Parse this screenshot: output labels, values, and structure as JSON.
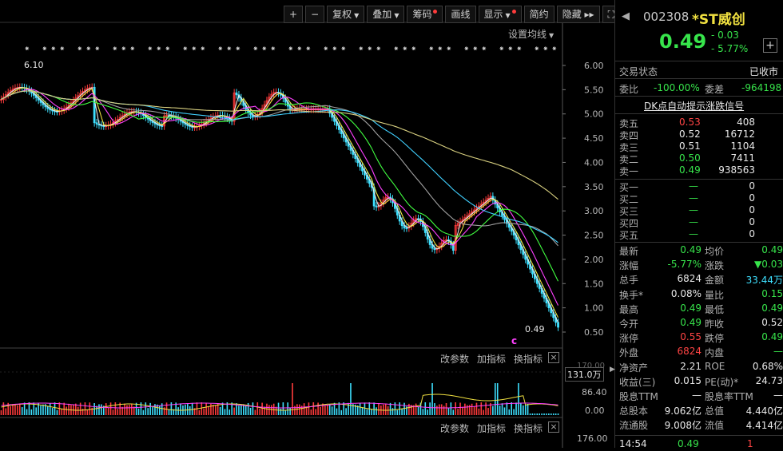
{
  "toolbar": {
    "zoom_in": "+",
    "zoom_out": "−",
    "fuquan": "复权",
    "diejia": "叠加",
    "chouma": "筹码",
    "huaxian": "画线",
    "xianshi": "显示",
    "jianyue": "简约",
    "yincang": "隐藏",
    "yincang_arrows": "▸▸",
    "fullscreen": "⛶"
  },
  "chart": {
    "settings_label": "设置均线",
    "high_marker": "6.10",
    "low_marker": "0.49",
    "price_ticks": [
      "6.00",
      "5.50",
      "5.00",
      "4.50",
      "4.00",
      "3.50",
      "3.00",
      "2.50",
      "2.00",
      "1.50",
      "1.00",
      "0.50"
    ],
    "indicator_tabs_1": [
      "改参数",
      "加指标",
      "换指标"
    ],
    "indicator_tabs_2": [
      "改参数",
      "加指标",
      "换指标"
    ],
    "volume_unit": "131.0万",
    "volume_ticks": [
      "86.40",
      "0.00"
    ],
    "volume_top_tick": "170.00",
    "lower_tick": "176.00",
    "c_marker": "c",
    "colors": {
      "ma_white": "#e8e8e8",
      "ma_yellow": "#f0e040",
      "ma_magenta": "#ff40ff",
      "ma_green": "#40ff40",
      "ma_grey": "#a0a0a0",
      "ma_cyan": "#40d0ff",
      "ma_khaki": "#d8d080",
      "candle_up": "#ff3b3b",
      "candle_down": "#3ee0ff"
    }
  },
  "panel": {
    "code": "002308",
    "name": "*ST威创",
    "price": "0.49",
    "change": "- 0.03",
    "change_pct": "- 5.77%",
    "add_btn": "+",
    "trade_status_label": "交易状态",
    "trade_status_value": "已收市",
    "weibi_label": "委比",
    "weibi_value": "-100.00%",
    "weicha_label": "委差",
    "weicha_value": "-964198",
    "dk_link": "DK点自动提示涨跌信号",
    "asks": [
      {
        "label": "卖五",
        "price": "0.53",
        "vol": "408"
      },
      {
        "label": "卖四",
        "price": "0.52",
        "vol": "16712"
      },
      {
        "label": "卖三",
        "price": "0.51",
        "vol": "1104"
      },
      {
        "label": "卖二",
        "price": "0.50",
        "vol": "7411"
      },
      {
        "label": "卖一",
        "price": "0.49",
        "vol": "938563"
      }
    ],
    "bids": [
      {
        "label": "买一",
        "price": "—",
        "vol": "0"
      },
      {
        "label": "买二",
        "price": "—",
        "vol": "0"
      },
      {
        "label": "买三",
        "price": "—",
        "vol": "0"
      },
      {
        "label": "买四",
        "price": "—",
        "vol": "0"
      },
      {
        "label": "买五",
        "price": "—",
        "vol": "0"
      }
    ],
    "stats": [
      {
        "l1": "最新",
        "v1": "0.49",
        "c1": "green",
        "l2": "均价",
        "v2": "0.49",
        "c2": "green"
      },
      {
        "l1": "涨幅",
        "v1": "-5.77%",
        "c1": "green",
        "l2": "涨跌",
        "v2": "▼0.03",
        "c2": "green"
      },
      {
        "l1": "总手",
        "v1": "6824",
        "c1": "white",
        "l2": "金额",
        "v2": "33.44万",
        "c2": "cyan"
      },
      {
        "l1": "换手*",
        "v1": "0.08%",
        "c1": "white",
        "l2": "量比",
        "v2": "0.15",
        "c2": "green"
      },
      {
        "l1": "最高",
        "v1": "0.49",
        "c1": "green",
        "l2": "最低",
        "v2": "0.49",
        "c2": "green"
      },
      {
        "l1": "今开",
        "v1": "0.49",
        "c1": "green",
        "l2": "昨收",
        "v2": "0.52",
        "c2": "white"
      },
      {
        "l1": "涨停",
        "v1": "0.55",
        "c1": "red",
        "l2": "跌停",
        "v2": "0.49",
        "c2": "green"
      },
      {
        "l1": "外盘",
        "v1": "6824",
        "c1": "red",
        "l2": "内盘",
        "v2": "—",
        "c2": "green"
      },
      {
        "l1": "净资产",
        "v1": "2.21",
        "c1": "white",
        "l2": "ROE",
        "v2": "0.68%",
        "c2": "white"
      },
      {
        "l1": "收益(三)",
        "v1": "0.015",
        "c1": "white",
        "l2": "PE(动)*",
        "v2": "24.73",
        "c2": "white"
      },
      {
        "l1": "股息TTM",
        "v1": "—",
        "c1": "white",
        "l2": "股息率TTM",
        "v2": "—",
        "c2": "white"
      },
      {
        "l1": "总股本",
        "v1": "9.062亿",
        "c1": "white",
        "l2": "总值",
        "v2": "4.440亿",
        "c2": "white"
      },
      {
        "l1": "流通股",
        "v1": "9.008亿",
        "c1": "white",
        "l2": "流值",
        "v2": "4.414亿",
        "c2": "white"
      }
    ],
    "tick": {
      "time": "14:54",
      "price": "0.49",
      "vol": "1"
    }
  }
}
